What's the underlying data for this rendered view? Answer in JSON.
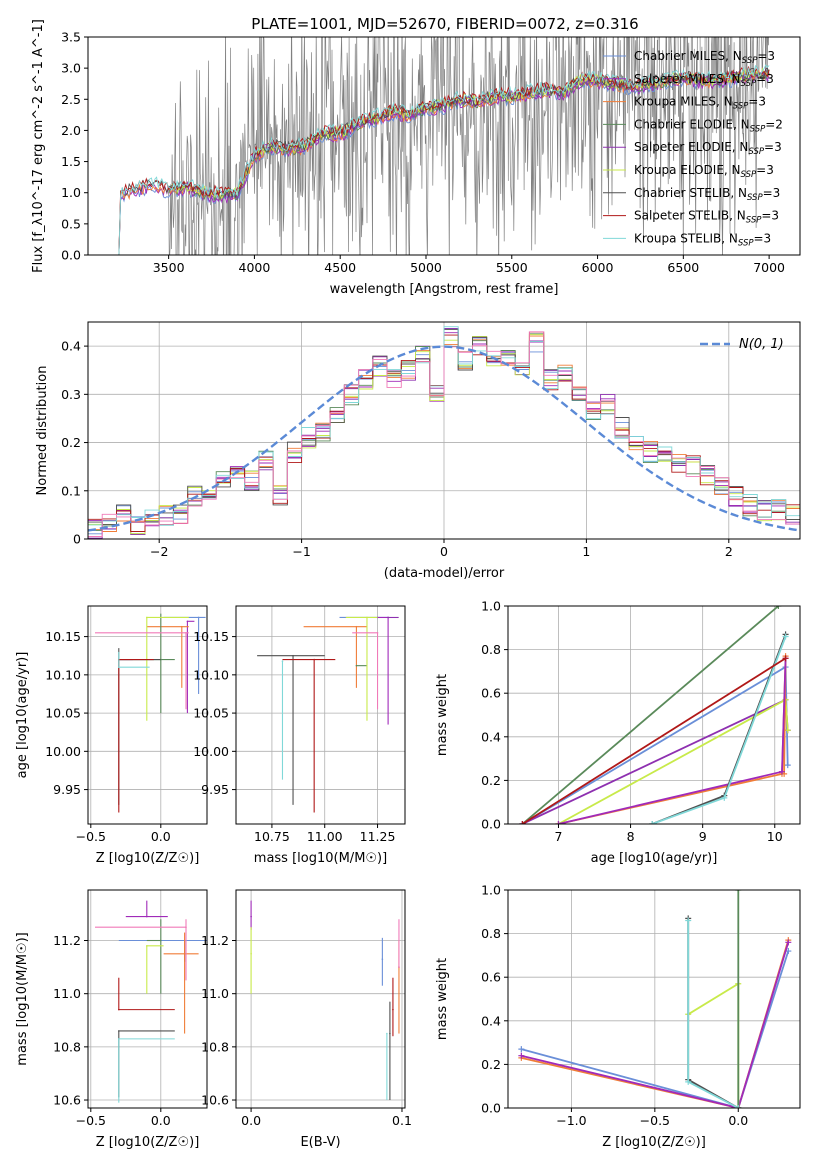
{
  "figure": {
    "title": "PLATE=1001, MJD=52670, FIBERID=0072, z=0.316",
    "colors": {
      "Chabrier MILES": "#6a8fd8",
      "Salpeter MILES": "#a02ab9",
      "Kroupa MILES": "#f07d38",
      "Chabrier ELODIE": "#5a8a5a",
      "Salpeter ELODIE": "#8e30b0",
      "Kroupa ELODIE": "#c8ea4a",
      "Chabrier STELIB": "#505050",
      "Salpeter STELIB": "#b01818",
      "Kroupa STELIB": "#80d8d8",
      "data_gray": "#808080",
      "gaussian": "#5b8ad6",
      "pink": "#f07ab8"
    }
  },
  "chart_data": [
    {
      "id": "spectrum",
      "type": "line",
      "xlabel": "wavelength [Angstrom, rest frame]",
      "ylabel": "Flux [f_λ10^-17 erg cm^-2 s^-1 A^-1]",
      "xlim": [
        3030,
        7180
      ],
      "ylim": [
        0,
        3.5
      ],
      "xticks": [
        3500,
        4000,
        4500,
        5000,
        5500,
        6000,
        6500,
        7000
      ],
      "yticks": [
        0.0,
        0.5,
        1.0,
        1.5,
        2.0,
        2.5,
        3.0,
        3.5
      ],
      "grid": false,
      "legend_position": "top-right",
      "legend": [
        {
          "model": "Chabrier MILES",
          "label": "Chabrier MILES, N",
          "sub": "SSP",
          "suffix": "=3"
        },
        {
          "model": "Salpeter MILES",
          "label": "Salpeter MILES, N",
          "sub": "SSP",
          "suffix": "=3"
        },
        {
          "model": "Kroupa MILES",
          "label": "Kroupa MILES, N",
          "sub": "SSP",
          "suffix": "=3"
        },
        {
          "model": "Chabrier ELODIE",
          "label": "Chabrier ELODIE, N",
          "sub": "SSP",
          "suffix": "=2"
        },
        {
          "model": "Salpeter ELODIE",
          "label": "Salpeter ELODIE, N",
          "sub": "SSP",
          "suffix": "=3"
        },
        {
          "model": "Kroupa ELODIE",
          "label": "Kroupa ELODIE, N",
          "sub": "SSP",
          "suffix": "=3"
        },
        {
          "model": "Chabrier STELIB",
          "label": "Chabrier STELIB, N",
          "sub": "SSP",
          "suffix": "=3"
        },
        {
          "model": "Salpeter STELIB",
          "label": "Salpeter STELIB, N",
          "sub": "SSP",
          "suffix": "=3"
        },
        {
          "model": "Kroupa STELIB",
          "label": "Kroupa STELIB, N",
          "sub": "SSP",
          "suffix": "=3"
        }
      ],
      "continuum_wavelength": [
        3200,
        3300,
        3400,
        3500,
        3600,
        3700,
        3800,
        3900,
        4000,
        4100,
        4200,
        4300,
        4400,
        4500,
        4600,
        4700,
        4800,
        4900,
        5000,
        5100,
        5200,
        5300,
        5400,
        5500,
        5600,
        5700,
        5800,
        5900,
        6000,
        6100,
        6200,
        6300,
        6400,
        6500,
        6600,
        6700,
        6800,
        6900,
        7000,
        7100
      ],
      "continuum_flux": [
        0.95,
        1.05,
        1.12,
        1.05,
        1.1,
        1.0,
        0.97,
        0.98,
        1.6,
        1.75,
        1.7,
        1.75,
        1.95,
        1.95,
        2.1,
        2.2,
        2.3,
        2.25,
        2.35,
        2.4,
        2.5,
        2.45,
        2.55,
        2.55,
        2.6,
        2.65,
        2.6,
        2.8,
        2.8,
        2.75,
        2.7,
        2.75,
        2.8,
        2.85,
        2.8,
        2.8,
        2.85,
        2.9,
        2.9,
        2.9
      ],
      "data_noise_range": {
        "start": 3500,
        "end": 7000
      }
    },
    {
      "id": "residual_histogram",
      "type": "line",
      "xlabel": "(data-model)/error",
      "ylabel": "Normed distribution",
      "xlim": [
        -2.5,
        2.5
      ],
      "ylim": [
        0,
        0.45
      ],
      "xticks": [
        -2,
        -1,
        0,
        1,
        2
      ],
      "yticks": [
        0.0,
        0.1,
        0.2,
        0.3,
        0.4
      ],
      "grid": true,
      "legend_position": "top-right",
      "legend": [
        {
          "label": "N(0, 1)",
          "style": "dashed"
        }
      ],
      "bin_edges_start": -2.5,
      "bin_width": 0.1,
      "histogram_center": [
        0.02,
        0.03,
        0.05,
        0.03,
        0.04,
        0.05,
        0.05,
        0.09,
        0.1,
        0.12,
        0.14,
        0.12,
        0.16,
        0.09,
        0.18,
        0.21,
        0.22,
        0.26,
        0.3,
        0.33,
        0.36,
        0.33,
        0.35,
        0.38,
        0.3,
        0.42,
        0.37,
        0.4,
        0.38,
        0.37,
        0.35,
        0.41,
        0.33,
        0.34,
        0.3,
        0.27,
        0.28,
        0.23,
        0.2,
        0.18,
        0.17,
        0.16,
        0.15,
        0.13,
        0.11,
        0.09,
        0.07,
        0.06,
        0.06,
        0.05
      ],
      "gaussian": {
        "mean": 0,
        "sigma": 1
      }
    },
    {
      "id": "age_vs_Z",
      "type": "scatter",
      "xlabel": "Z [log10(Z/Z☉)]",
      "ylabel": "age [log10(age/yr)]",
      "xlim": [
        -0.52,
        0.33
      ],
      "ylim": [
        9.905,
        10.19
      ],
      "xticks": [
        -0.5,
        0.0
      ],
      "yticks": [
        9.95,
        10.0,
        10.05,
        10.1,
        10.15
      ],
      "grid": true,
      "points": [
        {
          "model": "Chabrier MILES",
          "x": 0.27,
          "y": 10.175,
          "xerr": [
            0.25,
            0.05
          ],
          "yerr": [
            0.1,
            0.0
          ]
        },
        {
          "model": "Salpeter MILES",
          "x": 0.19,
          "y": 10.17,
          "xerr": [
            0.0,
            0.05
          ],
          "yerr": [
            0.12,
            0.0
          ]
        },
        {
          "model": "Kroupa MILES",
          "x": 0.15,
          "y": 10.163,
          "xerr": [
            0.25,
            0.05
          ],
          "yerr": [
            0.08,
            0.0
          ]
        },
        {
          "model": "Chabrier ELODIE",
          "x": 0.0,
          "y": 10.12,
          "xerr": [
            0.3,
            0.1
          ],
          "yerr": [
            0.07,
            0.06
          ]
        },
        {
          "model": "Salpeter ELODIE",
          "x": -0.3,
          "y": 10.12,
          "xerr": [
            0.0,
            0.1
          ],
          "yerr": [
            0.0,
            0.0
          ]
        },
        {
          "model": "Kroupa ELODIE",
          "x": -0.1,
          "y": 10.175,
          "xerr": [
            0.0,
            0.3
          ],
          "yerr": [
            0.135,
            0.0
          ]
        },
        {
          "model": "Chabrier STELIB",
          "x": -0.3,
          "y": 10.12,
          "xerr": [
            0.0,
            0.3
          ],
          "yerr": [
            0.19,
            0.015
          ]
        },
        {
          "model": "Salpeter STELIB",
          "x": -0.3,
          "y": 10.12,
          "xerr": [
            0.0,
            0.25
          ],
          "yerr": [
            0.2,
            0.0
          ]
        },
        {
          "model": "Kroupa STELIB",
          "x": -0.3,
          "y": 10.11,
          "xerr": [
            0.0,
            0.22
          ],
          "yerr": [
            0.0,
            0.02
          ]
        },
        {
          "model": "pink",
          "x": 0.18,
          "y": 10.155,
          "xerr": [
            0.65,
            0.02
          ],
          "yerr": [
            0.1,
            0.0
          ]
        }
      ]
    },
    {
      "id": "age_vs_mass",
      "type": "scatter",
      "xlabel": "mass [log10(M/M☉)]",
      "ylabel": "",
      "xlim": [
        10.58,
        11.38
      ],
      "ylim": [
        9.905,
        10.19
      ],
      "xticks": [
        10.75,
        11.0,
        11.25
      ],
      "yticks": [
        9.95,
        10.0,
        10.05,
        10.1,
        10.15
      ],
      "grid": true,
      "points": [
        {
          "model": "Chabrier MILES",
          "x": 11.25,
          "y": 10.175,
          "xerr": [
            0.18,
            0.05
          ],
          "yerr": [
            0.0,
            0.0
          ]
        },
        {
          "model": "Salpeter MILES",
          "x": 11.3,
          "y": 10.175,
          "xerr": [
            0.05,
            0.0
          ],
          "yerr": [
            0.14,
            0.0
          ]
        },
        {
          "model": "Kroupa MILES",
          "x": 11.15,
          "y": 10.163,
          "xerr": [
            0.25,
            0.05
          ],
          "yerr": [
            0.08,
            0.0
          ]
        },
        {
          "model": "Chabrier ELODIE",
          "x": 11.15,
          "y": 10.112,
          "xerr": [
            0.0,
            0.05
          ],
          "yerr": [
            0.0,
            0.0
          ]
        },
        {
          "model": "Kroupa ELODIE",
          "x": 11.2,
          "y": 10.175,
          "xerr": [
            0.1,
            0.05
          ],
          "yerr": [
            0.135,
            0.0
          ]
        },
        {
          "model": "Chabrier STELIB",
          "x": 10.85,
          "y": 10.125,
          "xerr": [
            0.17,
            0.15
          ],
          "yerr": [
            0.195,
            0.0
          ]
        },
        {
          "model": "Salpeter STELIB",
          "x": 10.95,
          "y": 10.12,
          "xerr": [
            0.15,
            0.1
          ],
          "yerr": [
            0.2,
            0.0
          ]
        },
        {
          "model": "Kroupa STELIB",
          "x": 10.8,
          "y": 10.118,
          "xerr": [
            0.0,
            0.0
          ],
          "yerr": [
            0.155,
            0.0
          ]
        },
        {
          "model": "pink",
          "x": 11.25,
          "y": 10.155,
          "xerr": [
            0.12,
            0.0
          ],
          "yerr": [
            0.1,
            0.0
          ]
        },
        {
          "model": "Salpeter ELODIE",
          "x": 11.3,
          "y": 10.175,
          "xerr": [
            0.0,
            0.05
          ],
          "yerr": [
            0.0,
            0.0
          ]
        }
      ]
    },
    {
      "id": "weight_vs_age",
      "type": "line",
      "xlabel": "age [log10(age/yr)]",
      "ylabel": "mass weight",
      "xlim": [
        6.3,
        10.35
      ],
      "ylim": [
        0,
        1
      ],
      "xticks": [
        7,
        8,
        9,
        10
      ],
      "yticks": [
        0.0,
        0.2,
        0.4,
        0.6,
        0.8,
        1.0
      ],
      "grid": true,
      "series": [
        {
          "model": "Chabrier ELODIE",
          "x": [
            6.5,
            10.05
          ],
          "y": [
            0.0,
            1.0
          ]
        },
        {
          "model": "Chabrier MILES",
          "x": [
            6.5,
            10.15,
            10.18
          ],
          "y": [
            0.0,
            0.72,
            0.27
          ]
        },
        {
          "model": "Salpeter ELODIE",
          "x": [
            6.5,
            10.15,
            10.18
          ],
          "y": [
            0.0,
            0.57,
            0.43
          ]
        },
        {
          "model": "Kroupa ELODIE",
          "x": [
            7.0,
            10.15,
            10.18
          ],
          "y": [
            0.0,
            0.57,
            0.43
          ]
        },
        {
          "model": "Kroupa MILES",
          "x": [
            7.0,
            10.1,
            10.15,
            10.13
          ],
          "y": [
            0.0,
            0.23,
            0.77,
            0.23
          ]
        },
        {
          "model": "Salpeter MILES",
          "x": [
            7.0,
            10.1,
            10.15
          ],
          "y": [
            0.0,
            0.24,
            0.76
          ]
        },
        {
          "model": "Chabrier STELIB",
          "x": [
            8.3,
            9.3,
            10.15
          ],
          "y": [
            0.0,
            0.13,
            0.87
          ]
        },
        {
          "model": "Kroupa STELIB",
          "x": [
            8.3,
            9.3,
            10.15
          ],
          "y": [
            0.0,
            0.12,
            0.86
          ]
        },
        {
          "model": "Salpeter STELIB",
          "x": [
            6.5,
            10.15
          ],
          "y": [
            0.0,
            0.76
          ]
        }
      ]
    },
    {
      "id": "mass_vs_Z",
      "type": "scatter",
      "xlabel": "Z [log10(Z/Z☉)]",
      "ylabel": "mass [log10(M/M☉)]",
      "xlim": [
        -0.52,
        0.33
      ],
      "ylim": [
        10.57,
        11.39
      ],
      "xticks": [
        -0.5,
        0.0
      ],
      "yticks": [
        10.6,
        10.8,
        11.0,
        11.2
      ],
      "grid": true,
      "points": [
        {
          "model": "Chabrier MILES",
          "x": 0.17,
          "y": 11.2,
          "xerr": [
            0.47,
            0.25
          ],
          "yerr": [
            0.08,
            0.0
          ]
        },
        {
          "model": "Salpeter MILES",
          "x": -0.1,
          "y": 11.29,
          "xerr": [
            0.15,
            0.15
          ],
          "yerr": [
            0.0,
            0.06
          ]
        },
        {
          "model": "Kroupa MILES",
          "x": 0.17,
          "y": 11.15,
          "xerr": [
            0.15,
            0.1
          ],
          "yerr": [
            0.3,
            0.08
          ]
        },
        {
          "model": "Chabrier ELODIE",
          "x": 0.0,
          "y": 11.2,
          "xerr": [
            0.1,
            0.0
          ],
          "yerr": [
            0.2,
            0.08
          ]
        },
        {
          "model": "Kroupa ELODIE",
          "x": -0.1,
          "y": 11.18,
          "xerr": [
            0.0,
            0.12
          ],
          "yerr": [
            0.18,
            0.0
          ]
        },
        {
          "model": "Chabrier STELIB",
          "x": -0.3,
          "y": 10.86,
          "xerr": [
            0.0,
            0.4
          ],
          "yerr": [
            0.25,
            0.0
          ]
        },
        {
          "model": "Salpeter STELIB",
          "x": -0.3,
          "y": 10.94,
          "xerr": [
            0.0,
            0.4
          ],
          "yerr": [
            0.0,
            0.12
          ]
        },
        {
          "model": "Kroupa STELIB",
          "x": -0.3,
          "y": 10.83,
          "xerr": [
            0.0,
            0.4
          ],
          "yerr": [
            0.24,
            0.0
          ]
        },
        {
          "model": "pink",
          "x": 0.18,
          "y": 11.25,
          "xerr": [
            0.65,
            0.0
          ],
          "yerr": [
            0.2,
            0.03
          ]
        }
      ]
    },
    {
      "id": "mass_vs_EBV",
      "type": "scatter",
      "xlabel": "E(B-V)",
      "ylabel": "",
      "xlim": [
        -0.01,
        0.102
      ],
      "ylim": [
        10.57,
        11.39
      ],
      "xticks": [
        0.0,
        0.1
      ],
      "yticks": [
        10.6,
        10.8,
        11.0,
        11.2
      ],
      "grid": true,
      "points": [
        {
          "model": "Salpeter MILES",
          "x": 0.0,
          "y": 11.29,
          "xerr": [
            0.0,
            0.0
          ],
          "yerr": [
            0.05,
            0.06
          ]
        },
        {
          "model": "Kroupa ELODIE",
          "x": 0.0,
          "y": 11.15,
          "xerr": [
            0.0,
            0.0
          ],
          "yerr": [
            0.15,
            0.1
          ]
        },
        {
          "model": "Chabrier MILES",
          "x": 0.087,
          "y": 11.13,
          "xerr": [
            0.0,
            0.0
          ],
          "yerr": [
            0.1,
            0.08
          ]
        },
        {
          "model": "Chabrier STELIB",
          "x": 0.092,
          "y": 10.85,
          "xerr": [
            0.0,
            0.0
          ],
          "yerr": [
            0.25,
            0.12
          ]
        },
        {
          "model": "Salpeter STELIB",
          "x": 0.094,
          "y": 10.94,
          "xerr": [
            0.0,
            0.0
          ],
          "yerr": [
            0.1,
            0.12
          ]
        },
        {
          "model": "Kroupa STELIB",
          "x": 0.09,
          "y": 10.85,
          "xerr": [
            0.0,
            0.0
          ],
          "yerr": [
            0.25,
            0.0
          ]
        },
        {
          "model": "Kroupa MILES",
          "x": 0.098,
          "y": 11.1,
          "xerr": [
            0.0,
            0.0
          ],
          "yerr": [
            0.25,
            0.1
          ]
        },
        {
          "model": "pink",
          "x": 0.098,
          "y": 11.1,
          "xerr": [
            0.0,
            0.0
          ],
          "yerr": [
            0.0,
            0.18
          ]
        }
      ]
    },
    {
      "id": "weight_vs_Z",
      "type": "line",
      "xlabel": "Z [log10(Z/Z☉)]",
      "ylabel": "mass weight",
      "xlim": [
        -1.38,
        0.37
      ],
      "ylim": [
        0,
        1
      ],
      "xticks": [
        -1.0,
        -0.5,
        0.0
      ],
      "yticks": [
        0.0,
        0.2,
        0.4,
        0.6,
        0.8,
        1.0
      ],
      "grid": true,
      "series": [
        {
          "model": "Chabrier MILES",
          "x": [
            -1.3,
            0.0,
            0.3
          ],
          "y": [
            0.27,
            0.0,
            0.72
          ]
        },
        {
          "model": "Kroupa MILES",
          "x": [
            -1.3,
            0.0,
            0.3
          ],
          "y": [
            0.23,
            0.0,
            0.77
          ]
        },
        {
          "model": "Salpeter MILES",
          "x": [
            -1.3,
            0.0,
            0.3
          ],
          "y": [
            0.24,
            0.0,
            0.76
          ]
        },
        {
          "model": "Kroupa ELODIE",
          "x": [
            -0.3,
            0.0,
            0.0
          ],
          "y": [
            0.43,
            0.57,
            0.0
          ]
        },
        {
          "model": "Chabrier ELODIE",
          "x": [
            0.0,
            0.0
          ],
          "y": [
            0.0,
            1.0
          ]
        },
        {
          "model": "Chabrier STELIB",
          "x": [
            -0.3,
            -0.3,
            0.0
          ],
          "y": [
            0.87,
            0.13,
            0.0
          ]
        },
        {
          "model": "Kroupa STELIB",
          "x": [
            -0.3,
            -0.3,
            0.0
          ],
          "y": [
            0.86,
            0.12,
            0.0
          ]
        }
      ]
    }
  ]
}
